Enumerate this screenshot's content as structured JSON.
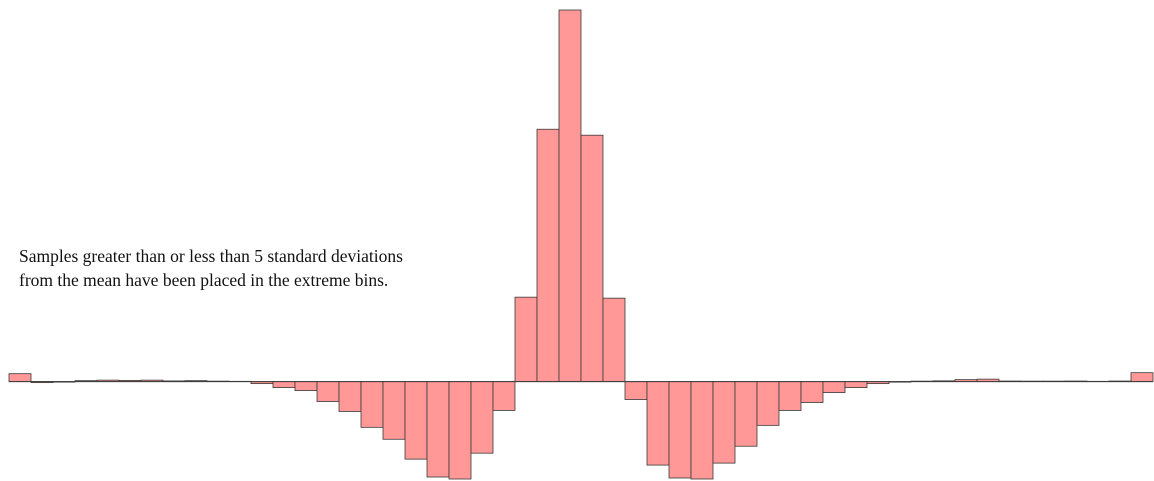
{
  "chart_data": {
    "type": "bar",
    "title": "",
    "xlabel": "",
    "ylabel": "",
    "annotation": "Samples greater than or less than 5 standard deviations from the mean have been placed in the extreme bins.",
    "values": [
      8,
      -1,
      -0.5,
      1,
      1.5,
      1.2,
      1.5,
      0.7,
      1,
      0.5,
      0.3,
      -2,
      -6,
      -9,
      -20,
      -30,
      -46,
      -58,
      -78,
      -96,
      -98,
      -72,
      -29,
      85,
      254,
      374,
      248,
      84,
      -18,
      -84,
      -97,
      -98,
      -82,
      -65,
      -44,
      -29,
      -21,
      -11,
      -6,
      -2,
      -0.5,
      0.5,
      0.8,
      2,
      2.5,
      0.6,
      0.5,
      0.5,
      0.6,
      0.3,
      0.6,
      9
    ],
    "ylim": [
      -100,
      375
    ],
    "grid": false,
    "legend": "none",
    "bar_color": "#ff9896",
    "edge_color": "#3a3a3a"
  }
}
